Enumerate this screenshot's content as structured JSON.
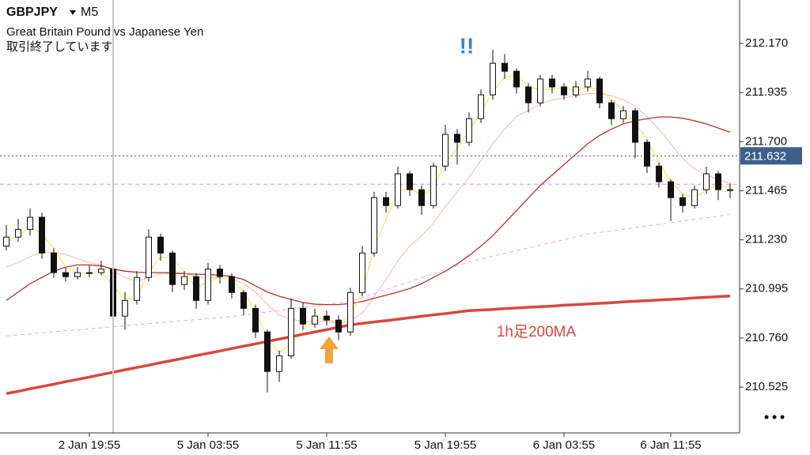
{
  "chart_data": {
    "type": "candlestick",
    "title": "GBPJPY",
    "timeframe": "M5",
    "subtitle": "Great Britain Pound vs Japanese Yen",
    "status": "取引終了しています",
    "annotation": "!!",
    "ylim": [
      210.306,
      212.378
    ],
    "yticks": [
      {
        "value": 212.17,
        "label": "212.170"
      },
      211.935,
      {
        "value": 211.7,
        "label": "211.700"
      },
      211.465,
      {
        "value": 211.23,
        "label": "211.230"
      },
      210.995,
      {
        "value": 210.76,
        "label": "210.760"
      },
      210.525
    ],
    "current_price": 211.632,
    "hline": 211.496,
    "categories": [
      null,
      null,
      null,
      null,
      null,
      null,
      null,
      "2 Jan 19:55",
      null,
      null,
      null,
      null,
      null,
      null,
      null,
      null,
      null,
      "5 Jan 03:55",
      null,
      null,
      null,
      null,
      null,
      null,
      null,
      null,
      null,
      "5 Jan 11:55",
      null,
      null,
      null,
      null,
      null,
      null,
      null,
      null,
      null,
      "5 Jan 19:55",
      null,
      null,
      null,
      null,
      null,
      null,
      null,
      null,
      null,
      "6 Jan 03:55",
      null,
      null,
      null,
      null,
      null,
      null,
      null,
      null,
      "6 Jan 11:55",
      null,
      null,
      null,
      null,
      null
    ],
    "ohlc": [
      [
        211.2,
        211.3,
        211.18,
        211.243
      ],
      [
        211.243,
        211.33,
        211.22,
        211.28
      ],
      [
        211.28,
        211.38,
        211.25,
        211.338
      ],
      [
        211.338,
        211.36,
        211.14,
        211.167
      ],
      [
        211.167,
        211.19,
        211.05,
        211.073
      ],
      [
        211.073,
        211.1,
        211.03,
        211.054
      ],
      [
        211.054,
        211.1,
        211.04,
        211.073
      ],
      [
        211.073,
        211.11,
        211.05,
        211.073
      ],
      [
        211.073,
        211.13,
        211.06,
        211.09
      ],
      [
        211.09,
        211.1,
        210.75,
        210.865
      ],
      [
        210.865,
        210.98,
        210.8,
        210.94
      ],
      [
        210.94,
        211.08,
        210.92,
        211.05
      ],
      [
        211.05,
        211.28,
        211.03,
        211.243
      ],
      [
        211.243,
        211.26,
        211.13,
        211.167
      ],
      [
        211.167,
        211.18,
        210.98,
        211.016
      ],
      [
        211.016,
        211.08,
        210.99,
        211.054
      ],
      [
        211.054,
        211.07,
        210.9,
        210.94
      ],
      [
        210.94,
        211.12,
        210.92,
        211.09
      ],
      [
        211.09,
        211.11,
        211.02,
        211.054
      ],
      [
        211.054,
        211.07,
        210.95,
        210.978
      ],
      [
        210.978,
        210.99,
        210.87,
        210.902
      ],
      [
        210.902,
        210.92,
        210.76,
        210.789
      ],
      [
        210.789,
        210.8,
        210.5,
        210.6
      ],
      [
        210.6,
        210.7,
        210.55,
        210.675
      ],
      [
        210.675,
        210.95,
        210.66,
        210.902
      ],
      [
        210.902,
        210.93,
        210.8,
        210.827
      ],
      [
        210.827,
        210.9,
        210.81,
        210.865
      ],
      [
        210.865,
        210.89,
        210.82,
        210.846
      ],
      [
        210.846,
        210.87,
        210.75,
        210.789
      ],
      [
        210.789,
        211.0,
        210.77,
        210.978
      ],
      [
        210.978,
        211.2,
        210.96,
        211.167
      ],
      [
        211.167,
        211.46,
        211.15,
        211.432
      ],
      [
        211.432,
        211.46,
        211.36,
        211.394
      ],
      [
        211.394,
        211.58,
        211.38,
        211.546
      ],
      [
        211.546,
        211.56,
        211.44,
        211.47
      ],
      [
        211.47,
        211.49,
        211.35,
        211.394
      ],
      [
        211.394,
        211.6,
        211.38,
        211.583
      ],
      [
        211.583,
        211.78,
        211.56,
        211.735
      ],
      [
        211.735,
        211.76,
        211.59,
        211.697
      ],
      [
        211.697,
        211.84,
        211.68,
        211.81
      ],
      [
        211.81,
        211.95,
        211.79,
        211.924
      ],
      [
        211.924,
        212.14,
        211.9,
        212.075
      ],
      [
        212.075,
        212.12,
        212.0,
        212.037
      ],
      [
        212.037,
        212.05,
        211.93,
        211.962
      ],
      [
        211.962,
        211.98,
        211.84,
        211.886
      ],
      [
        211.886,
        212.02,
        211.87,
        212.0
      ],
      [
        212.0,
        212.02,
        211.93,
        211.962
      ],
      [
        211.962,
        211.98,
        211.9,
        211.924
      ],
      [
        211.924,
        211.99,
        211.91,
        211.962
      ],
      [
        211.962,
        212.04,
        211.94,
        212.0
      ],
      [
        212.0,
        212.01,
        211.86,
        211.886
      ],
      [
        211.886,
        211.9,
        211.78,
        211.81
      ],
      [
        211.81,
        211.87,
        211.79,
        211.848
      ],
      [
        211.848,
        211.86,
        211.62,
        211.697
      ],
      [
        211.697,
        211.71,
        211.55,
        211.583
      ],
      [
        211.583,
        211.6,
        211.48,
        211.508
      ],
      [
        211.508,
        211.52,
        211.32,
        211.432
      ],
      [
        211.432,
        211.45,
        211.36,
        211.394
      ],
      [
        211.394,
        211.49,
        211.38,
        211.47
      ],
      [
        211.47,
        211.58,
        211.45,
        211.546
      ],
      [
        211.546,
        211.56,
        211.42,
        211.47
      ],
      [
        211.47,
        211.5,
        211.43,
        211.47
      ]
    ],
    "series": [
      {
        "color": "#f0a3d8",
        "width": 1,
        "dashed": true,
        "values": [
          210.77,
          210.775,
          210.78,
          210.785,
          210.79,
          210.795,
          210.799,
          210.804,
          210.809,
          210.814,
          210.819,
          210.824,
          210.829,
          210.834,
          210.839,
          210.844,
          210.848,
          210.853,
          210.858,
          210.863,
          210.87,
          210.877,
          210.885,
          210.892,
          210.899,
          210.906,
          210.913,
          210.921,
          210.928,
          210.935,
          210.954,
          210.973,
          210.992,
          211.011,
          211.03,
          211.049,
          211.068,
          211.087,
          211.106,
          211.125,
          211.138,
          211.152,
          211.165,
          211.178,
          211.191,
          211.205,
          211.218,
          211.231,
          211.244,
          211.258,
          211.265,
          211.273,
          211.281,
          211.289,
          211.297,
          211.304,
          211.312,
          211.32,
          211.328,
          211.336,
          211.343,
          211.351
        ]
      },
      {
        "color": "#f2b8b0",
        "width": 1,
        "values": [
          211.1,
          211.12,
          211.15,
          211.17,
          211.17,
          211.16,
          211.14,
          211.12,
          211.11,
          211.08,
          211.05,
          211.03,
          211.05,
          211.07,
          211.08,
          211.07,
          211.05,
          211.05,
          211.05,
          211.04,
          211.02,
          210.98,
          210.92,
          210.87,
          210.85,
          210.84,
          210.84,
          210.84,
          210.83,
          210.84,
          210.88,
          210.96,
          211.04,
          211.13,
          211.2,
          211.25,
          211.31,
          211.39,
          211.46,
          211.53,
          211.61,
          211.69,
          211.76,
          211.82,
          211.85,
          211.88,
          211.9,
          211.91,
          211.92,
          211.93,
          211.93,
          211.92,
          211.9,
          211.87,
          211.82,
          211.76,
          211.69,
          211.62,
          211.57,
          211.54,
          211.52,
          211.5
        ]
      },
      {
        "color": "#b3322b",
        "width": 1.3,
        "values": [
          210.94,
          210.98,
          211.02,
          211.05,
          211.08,
          211.1,
          211.11,
          211.11,
          211.105,
          211.09,
          211.08,
          211.075,
          211.073,
          211.073,
          211.07,
          211.068,
          211.065,
          211.065,
          211.06,
          211.055,
          211.04,
          211.01,
          210.98,
          210.96,
          210.945,
          210.93,
          210.922,
          210.92,
          210.92,
          210.925,
          210.935,
          210.95,
          210.965,
          210.98,
          210.997,
          211.02,
          211.05,
          211.08,
          211.115,
          211.155,
          211.2,
          211.25,
          211.31,
          211.37,
          211.43,
          211.49,
          211.54,
          211.59,
          211.64,
          211.69,
          211.73,
          211.76,
          211.785,
          211.8,
          211.81,
          211.818,
          211.818,
          211.812,
          211.8,
          211.785,
          211.765,
          211.745
        ]
      },
      {
        "color": "#f2ea6e",
        "width": 1.3,
        "values": [
          211.22,
          211.25,
          211.29,
          211.26,
          211.19,
          211.1,
          211.07,
          211.07,
          211.08,
          211.01,
          210.95,
          210.95,
          211.08,
          211.15,
          211.14,
          211.08,
          211.0,
          211.03,
          211.05,
          211.04,
          210.98,
          210.89,
          210.76,
          210.69,
          210.73,
          210.8,
          210.85,
          210.85,
          210.83,
          210.87,
          210.98,
          211.19,
          211.33,
          211.46,
          211.48,
          211.44,
          211.48,
          211.6,
          211.67,
          211.75,
          211.84,
          211.94,
          212.01,
          212.02,
          211.96,
          211.95,
          211.95,
          211.96,
          211.94,
          211.96,
          211.95,
          211.9,
          211.85,
          211.79,
          211.71,
          211.6,
          211.51,
          211.45,
          211.43,
          211.47,
          211.49,
          211.48
        ]
      },
      {
        "name": "1h足200MA",
        "color": "#d9473f",
        "width": 3.5,
        "values": [
          210.494,
          210.505,
          210.517,
          210.528,
          210.539,
          210.551,
          210.562,
          210.573,
          210.585,
          210.596,
          210.608,
          210.619,
          210.63,
          210.642,
          210.653,
          210.664,
          210.676,
          210.687,
          210.698,
          210.71,
          210.721,
          210.732,
          210.744,
          210.755,
          210.766,
          210.778,
          210.789,
          210.8,
          210.812,
          210.823,
          210.83,
          210.837,
          210.843,
          210.85,
          210.857,
          210.864,
          210.871,
          210.877,
          210.884,
          210.891,
          210.894,
          210.897,
          210.901,
          210.904,
          210.907,
          210.91,
          210.913,
          210.917,
          210.92,
          210.923,
          210.926,
          210.929,
          210.933,
          210.936,
          210.939,
          210.942,
          210.945,
          210.948,
          210.952,
          210.955,
          210.958,
          210.961
        ]
      }
    ]
  }
}
